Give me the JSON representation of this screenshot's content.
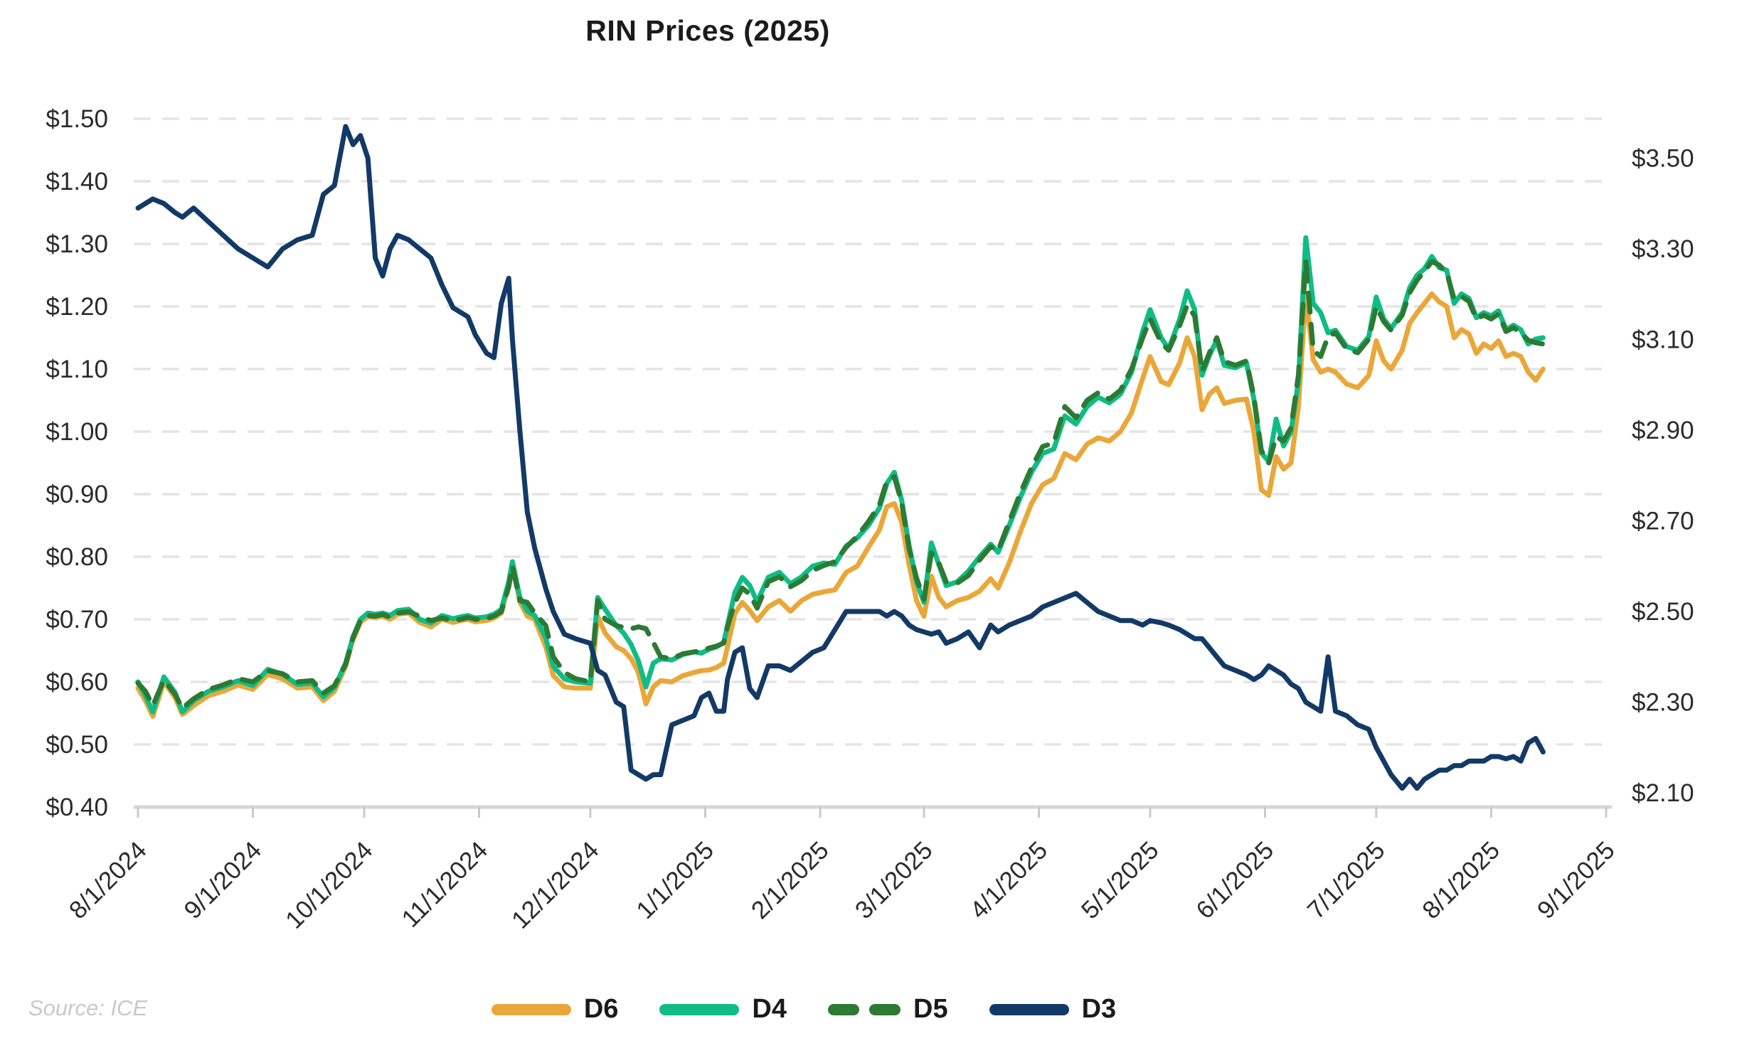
{
  "title": "RIN Prices (2025)",
  "source_note": "Source: ICE",
  "legend": {
    "items": [
      {
        "label": "D6",
        "color": "#EAA739",
        "style": "solid"
      },
      {
        "label": "D4",
        "color": "#10BC85",
        "style": "solid"
      },
      {
        "label": "D5",
        "color": "#2C7A33",
        "style": "dashed"
      },
      {
        "label": "D3",
        "color": "#133A66",
        "style": "solid"
      }
    ]
  },
  "chart_data": {
    "type": "line",
    "title": "RIN Prices (2025)",
    "grid": "horizontal-dashed",
    "legend_position": "bottom-center",
    "x_axis": {
      "start": "2024-08-01",
      "end": "2025-09-01",
      "tick_labels": [
        "8/1/2024",
        "9/1/2024",
        "10/1/2024",
        "11/1/2024",
        "12/1/2024",
        "1/1/2025",
        "2/1/2025",
        "3/1/2025",
        "4/1/2025",
        "5/1/2025",
        "6/1/2025",
        "7/1/2025",
        "8/1/2025",
        "9/1/2025"
      ]
    },
    "left_axis": {
      "min": 0.4,
      "max": 1.5,
      "step": 0.1,
      "ticks": [
        {
          "label": "$1.50",
          "value": 1.5
        },
        {
          "label": "$1.40",
          "value": 1.4
        },
        {
          "label": "$1.30",
          "value": 1.3
        },
        {
          "label": "$1.20",
          "value": 1.2
        },
        {
          "label": "$1.10",
          "value": 1.1
        },
        {
          "label": "$1.00",
          "value": 1.0
        },
        {
          "label": "$0.90",
          "value": 0.9
        },
        {
          "label": "$0.80",
          "value": 0.8
        },
        {
          "label": "$0.70",
          "value": 0.7
        },
        {
          "label": "$0.60",
          "value": 0.6
        },
        {
          "label": "$0.50",
          "value": 0.5
        },
        {
          "label": "$0.40",
          "value": 0.4
        }
      ]
    },
    "right_axis": {
      "min": 2.1,
      "max": 3.5,
      "step": 0.2,
      "ticks": [
        {
          "label": "$3.50",
          "value": 3.5
        },
        {
          "label": "$3.30",
          "value": 3.3
        },
        {
          "label": "$3.10",
          "value": 3.1
        },
        {
          "label": "$2.90",
          "value": 2.9
        },
        {
          "label": "$2.70",
          "value": 2.7
        },
        {
          "label": "$2.50",
          "value": 2.5
        },
        {
          "label": "$2.30",
          "value": 2.3
        },
        {
          "label": "$2.10",
          "value": 2.1
        }
      ]
    },
    "dates": [
      "2024-08-01",
      "2024-08-03",
      "2024-08-05",
      "2024-08-08",
      "2024-08-11",
      "2024-08-13",
      "2024-08-16",
      "2024-08-20",
      "2024-08-24",
      "2024-08-28",
      "2024-09-01",
      "2024-09-05",
      "2024-09-09",
      "2024-09-13",
      "2024-09-17",
      "2024-09-20",
      "2024-09-23",
      "2024-09-26",
      "2024-09-28",
      "2024-09-30",
      "2024-10-02",
      "2024-10-04",
      "2024-10-06",
      "2024-10-08",
      "2024-10-10",
      "2024-10-13",
      "2024-10-16",
      "2024-10-19",
      "2024-10-22",
      "2024-10-25",
      "2024-10-27",
      "2024-10-29",
      "2024-10-31",
      "2024-11-03",
      "2024-11-05",
      "2024-11-07",
      "2024-11-09",
      "2024-11-10",
      "2024-11-12",
      "2024-11-14",
      "2024-11-16",
      "2024-11-19",
      "2024-11-21",
      "2024-11-24",
      "2024-11-27",
      "2024-12-01",
      "2024-12-03",
      "2024-12-05",
      "2024-12-08",
      "2024-12-10",
      "2024-12-12",
      "2024-12-14",
      "2024-12-16",
      "2024-12-18",
      "2024-12-20",
      "2024-12-23",
      "2024-12-26",
      "2024-12-29",
      "2024-12-31",
      "2025-01-02",
      "2025-01-04",
      "2025-01-06",
      "2025-01-07",
      "2025-01-09",
      "2025-01-11",
      "2025-01-13",
      "2025-01-15",
      "2025-01-18",
      "2025-01-21",
      "2025-01-24",
      "2025-01-27",
      "2025-01-30",
      "2025-02-02",
      "2025-02-05",
      "2025-02-08",
      "2025-02-11",
      "2025-02-14",
      "2025-02-17",
      "2025-02-19",
      "2025-02-21",
      "2025-02-23",
      "2025-02-25",
      "2025-02-27",
      "2025-03-01",
      "2025-03-03",
      "2025-03-05",
      "2025-03-07",
      "2025-03-10",
      "2025-03-13",
      "2025-03-16",
      "2025-03-19",
      "2025-03-21",
      "2025-03-24",
      "2025-03-27",
      "2025-03-30",
      "2025-04-02",
      "2025-04-05",
      "2025-04-08",
      "2025-04-11",
      "2025-04-14",
      "2025-04-17",
      "2025-04-20",
      "2025-04-23",
      "2025-04-26",
      "2025-04-29",
      "2025-05-01",
      "2025-05-04",
      "2025-05-06",
      "2025-05-09",
      "2025-05-11",
      "2025-05-13",
      "2025-05-15",
      "2025-05-17",
      "2025-05-19",
      "2025-05-21",
      "2025-05-24",
      "2025-05-27",
      "2025-05-29",
      "2025-05-31",
      "2025-06-02",
      "2025-06-04",
      "2025-06-06",
      "2025-06-08",
      "2025-06-10",
      "2025-06-12",
      "2025-06-14",
      "2025-06-16",
      "2025-06-18",
      "2025-06-20",
      "2025-06-23",
      "2025-06-26",
      "2025-06-29",
      "2025-07-01",
      "2025-07-03",
      "2025-07-05",
      "2025-07-08",
      "2025-07-10",
      "2025-07-12",
      "2025-07-14",
      "2025-07-16",
      "2025-07-18",
      "2025-07-20",
      "2025-07-22",
      "2025-07-24",
      "2025-07-26",
      "2025-07-28",
      "2025-07-30",
      "2025-08-01",
      "2025-08-03",
      "2025-08-05",
      "2025-08-07",
      "2025-08-09",
      "2025-08-11",
      "2025-08-13",
      "2025-08-15"
    ],
    "series": [
      {
        "name": "D6",
        "axis": "left",
        "color": "#EAA739",
        "style": "solid",
        "values": [
          0.59,
          0.57,
          0.545,
          0.6,
          0.575,
          0.548,
          0.562,
          0.578,
          0.585,
          0.595,
          0.588,
          0.612,
          0.605,
          0.59,
          0.592,
          0.57,
          0.585,
          0.625,
          0.668,
          0.695,
          0.705,
          0.703,
          0.705,
          0.7,
          0.708,
          0.71,
          0.695,
          0.688,
          0.7,
          0.695,
          0.698,
          0.7,
          0.696,
          0.698,
          0.702,
          0.71,
          0.755,
          0.788,
          0.728,
          0.705,
          0.7,
          0.656,
          0.61,
          0.592,
          0.59,
          0.59,
          0.705,
          0.678,
          0.656,
          0.65,
          0.637,
          0.615,
          0.565,
          0.592,
          0.602,
          0.6,
          0.61,
          0.615,
          0.618,
          0.619,
          0.623,
          0.63,
          0.656,
          0.71,
          0.727,
          0.714,
          0.698,
          0.72,
          0.73,
          0.713,
          0.73,
          0.74,
          0.744,
          0.747,
          0.775,
          0.785,
          0.815,
          0.843,
          0.88,
          0.885,
          0.855,
          0.788,
          0.73,
          0.705,
          0.769,
          0.735,
          0.72,
          0.73,
          0.735,
          0.745,
          0.765,
          0.75,
          0.79,
          0.84,
          0.885,
          0.915,
          0.925,
          0.965,
          0.955,
          0.98,
          0.99,
          0.985,
          1.0,
          1.03,
          1.085,
          1.12,
          1.08,
          1.075,
          1.11,
          1.15,
          1.12,
          1.035,
          1.06,
          1.07,
          1.045,
          1.05,
          1.052,
          1.0,
          0.907,
          0.898,
          0.96,
          0.94,
          0.95,
          1.04,
          1.22,
          1.115,
          1.095,
          1.1,
          1.095,
          1.076,
          1.07,
          1.09,
          1.145,
          1.113,
          1.1,
          1.13,
          1.173,
          1.19,
          1.205,
          1.22,
          1.207,
          1.2,
          1.15,
          1.163,
          1.156,
          1.125,
          1.14,
          1.133,
          1.145,
          1.12,
          1.125,
          1.12,
          1.095,
          1.082,
          1.1
        ]
      },
      {
        "name": "D4",
        "axis": "left",
        "color": "#10BC85",
        "style": "solid",
        "values": [
          0.6,
          0.578,
          0.552,
          0.608,
          0.583,
          0.552,
          0.57,
          0.585,
          0.592,
          0.602,
          0.594,
          0.62,
          0.612,
          0.596,
          0.598,
          0.576,
          0.591,
          0.63,
          0.672,
          0.7,
          0.71,
          0.708,
          0.71,
          0.706,
          0.714,
          0.716,
          0.7,
          0.694,
          0.706,
          0.701,
          0.704,
          0.706,
          0.702,
          0.704,
          0.708,
          0.716,
          0.76,
          0.792,
          0.735,
          0.713,
          0.706,
          0.67,
          0.625,
          0.605,
          0.6,
          0.598,
          0.735,
          0.716,
          0.69,
          0.678,
          0.66,
          0.633,
          0.592,
          0.63,
          0.637,
          0.635,
          0.644,
          0.648,
          0.646,
          0.652,
          0.656,
          0.663,
          0.69,
          0.743,
          0.767,
          0.754,
          0.728,
          0.767,
          0.775,
          0.757,
          0.768,
          0.785,
          0.79,
          0.788,
          0.817,
          0.83,
          0.85,
          0.878,
          0.917,
          0.935,
          0.89,
          0.817,
          0.76,
          0.727,
          0.822,
          0.788,
          0.754,
          0.76,
          0.777,
          0.8,
          0.82,
          0.807,
          0.85,
          0.895,
          0.935,
          0.965,
          0.972,
          1.025,
          1.012,
          1.04,
          1.055,
          1.046,
          1.06,
          1.095,
          1.16,
          1.195,
          1.15,
          1.132,
          1.18,
          1.225,
          1.195,
          1.09,
          1.122,
          1.146,
          1.106,
          1.102,
          1.11,
          1.052,
          0.966,
          0.952,
          1.02,
          0.977,
          1.0,
          1.08,
          1.31,
          1.205,
          1.19,
          1.158,
          1.162,
          1.136,
          1.13,
          1.152,
          1.215,
          1.18,
          1.165,
          1.19,
          1.23,
          1.25,
          1.26,
          1.28,
          1.262,
          1.258,
          1.205,
          1.22,
          1.213,
          1.182,
          1.19,
          1.185,
          1.193,
          1.163,
          1.17,
          1.163,
          1.14,
          1.148,
          1.15
        ]
      },
      {
        "name": "D5",
        "axis": "left",
        "color": "#2C7A33",
        "style": "dashed",
        "values": [
          0.598,
          0.585,
          0.562,
          0.603,
          0.58,
          0.558,
          0.573,
          0.588,
          0.595,
          0.605,
          0.6,
          0.618,
          0.613,
          0.6,
          0.602,
          0.582,
          0.594,
          0.628,
          0.67,
          0.698,
          0.706,
          0.705,
          0.708,
          0.703,
          0.71,
          0.712,
          0.705,
          0.698,
          0.702,
          0.698,
          0.7,
          0.703,
          0.7,
          0.701,
          0.705,
          0.712,
          0.752,
          0.785,
          0.73,
          0.727,
          0.71,
          0.69,
          0.64,
          0.615,
          0.605,
          0.6,
          0.73,
          0.7,
          0.69,
          0.687,
          0.685,
          0.688,
          0.685,
          0.663,
          0.64,
          0.637,
          0.645,
          0.648,
          0.65,
          0.654,
          0.657,
          0.662,
          0.688,
          0.727,
          0.75,
          0.74,
          0.718,
          0.76,
          0.768,
          0.752,
          0.762,
          0.778,
          0.786,
          0.792,
          0.815,
          0.833,
          0.856,
          0.883,
          0.921,
          0.928,
          0.886,
          0.813,
          0.766,
          0.732,
          0.806,
          0.79,
          0.76,
          0.758,
          0.77,
          0.795,
          0.816,
          0.81,
          0.856,
          0.902,
          0.942,
          0.976,
          0.982,
          1.04,
          1.022,
          1.05,
          1.062,
          1.052,
          1.066,
          1.1,
          1.15,
          1.18,
          1.142,
          1.13,
          1.17,
          1.202,
          1.185,
          1.096,
          1.126,
          1.15,
          1.112,
          1.106,
          1.113,
          1.056,
          0.97,
          0.95,
          0.992,
          0.985,
          1.006,
          1.09,
          1.272,
          1.13,
          1.12,
          1.152,
          1.158,
          1.132,
          1.126,
          1.148,
          1.2,
          1.176,
          1.162,
          1.186,
          1.222,
          1.242,
          1.256,
          1.272,
          1.266,
          1.254,
          1.212,
          1.216,
          1.208,
          1.18,
          1.186,
          1.18,
          1.188,
          1.16,
          1.166,
          1.158,
          1.146,
          1.142,
          1.14
        ]
      },
      {
        "name": "D3",
        "axis": "right",
        "color": "#133A66",
        "style": "solid",
        "values": [
          3.39,
          3.4,
          3.41,
          3.4,
          3.38,
          3.37,
          3.39,
          3.36,
          3.33,
          3.3,
          3.28,
          3.26,
          3.3,
          3.32,
          3.33,
          3.42,
          3.44,
          3.57,
          3.53,
          3.55,
          3.5,
          3.28,
          3.24,
          3.3,
          3.33,
          3.32,
          3.3,
          3.28,
          3.22,
          3.17,
          3.16,
          3.15,
          3.11,
          3.07,
          3.06,
          3.18,
          3.235,
          3.1,
          2.9,
          2.72,
          2.64,
          2.55,
          2.5,
          2.45,
          2.44,
          2.43,
          2.37,
          2.36,
          2.3,
          2.29,
          2.15,
          2.14,
          2.13,
          2.14,
          2.14,
          2.25,
          2.26,
          2.27,
          2.31,
          2.32,
          2.28,
          2.28,
          2.35,
          2.41,
          2.42,
          2.33,
          2.31,
          2.38,
          2.38,
          2.37,
          2.39,
          2.41,
          2.42,
          2.46,
          2.5,
          2.5,
          2.5,
          2.5,
          2.49,
          2.5,
          2.49,
          2.47,
          2.46,
          2.455,
          2.45,
          2.455,
          2.43,
          2.44,
          2.455,
          2.42,
          2.47,
          2.455,
          2.47,
          2.48,
          2.49,
          2.51,
          2.52,
          2.53,
          2.54,
          2.52,
          2.5,
          2.49,
          2.48,
          2.48,
          2.47,
          2.48,
          2.475,
          2.47,
          2.46,
          2.45,
          2.44,
          2.44,
          2.42,
          2.4,
          2.38,
          2.37,
          2.36,
          2.35,
          2.36,
          2.38,
          2.37,
          2.36,
          2.34,
          2.33,
          2.3,
          2.29,
          2.28,
          2.4,
          2.28,
          2.27,
          2.25,
          2.24,
          2.2,
          2.17,
          2.14,
          2.11,
          2.13,
          2.11,
          2.13,
          2.14,
          2.15,
          2.15,
          2.16,
          2.16,
          2.17,
          2.17,
          2.17,
          2.18,
          2.18,
          2.175,
          2.18,
          2.17,
          2.21,
          2.22,
          2.19
        ]
      }
    ]
  }
}
